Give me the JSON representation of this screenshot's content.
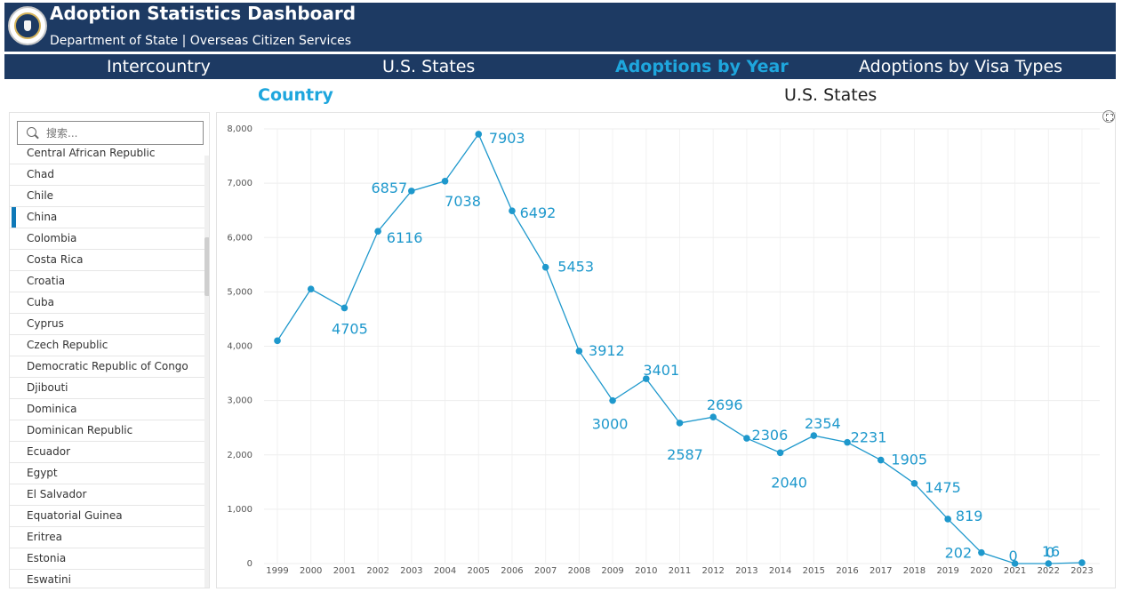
{
  "header": {
    "title": "Adoption Statistics Dashboard",
    "subtitle": "Department of State | Overseas Citizen Services"
  },
  "nav": [
    {
      "label": "Intercountry"
    },
    {
      "label": "U.S. States"
    },
    {
      "label": "Adoptions by Year"
    },
    {
      "label": "Adoptions by Visa Types"
    }
  ],
  "subtabs": [
    {
      "label": "Country"
    },
    {
      "label": "U.S. States"
    }
  ],
  "search": {
    "placeholder": "搜索..."
  },
  "countries": [
    "Central African Republic",
    "Chad",
    "Chile",
    "China",
    "Colombia",
    "Costa Rica",
    "Croatia",
    "Cuba",
    "Cyprus",
    "Czech Republic",
    "Democratic Republic of Congo",
    "Djibouti",
    "Dominica",
    "Dominican Republic",
    "Ecuador",
    "Egypt",
    "El Salvador",
    "Equatorial Guinea",
    "Eritrea",
    "Estonia",
    "Eswatini"
  ],
  "selected_country": "China",
  "colors": {
    "header_bg": "#1d3a63",
    "accent": "#1ea6dd",
    "line": "#1e98cc",
    "selected_bar": "#0f79b8"
  },
  "icons": {
    "seal": "department-of-state-seal",
    "search": "search-icon",
    "expand": "expand-icon"
  },
  "chart_data": {
    "type": "line",
    "x": [
      "1999",
      "2000",
      "2001",
      "2002",
      "2003",
      "2004",
      "2005",
      "2006",
      "2007",
      "2008",
      "2009",
      "2010",
      "2011",
      "2012",
      "2013",
      "2014",
      "2015",
      "2016",
      "2017",
      "2018",
      "2019",
      "2020",
      "2021",
      "2022",
      "2023"
    ],
    "values": [
      4101,
      5053,
      4705,
      6116,
      6857,
      7038,
      7903,
      6492,
      5453,
      3912,
      3000,
      3401,
      2587,
      2696,
      2306,
      2040,
      2354,
      2231,
      1905,
      1475,
      819,
      202,
      0,
      0,
      16
    ],
    "data_labels": {
      "2001": "4705",
      "2002": "6116",
      "2003": "6857",
      "2004": "7038",
      "2005": "7903",
      "2006": "6492",
      "2007": "5453",
      "2008": "3912",
      "2009": "3000",
      "2010": "3401",
      "2011": "2587",
      "2012": "2696",
      "2013": "2306",
      "2014": "2040",
      "2015": "2354",
      "2016": "2231",
      "2017": "1905",
      "2018": "1475",
      "2019": "819",
      "2020": "202",
      "2021": "0",
      "2022": "0",
      "2023": "16"
    },
    "ylim": [
      0,
      8000
    ],
    "yticks": [
      "0",
      "1,000",
      "2,000",
      "3,000",
      "4,000",
      "5,000",
      "6,000",
      "7,000",
      "8,000"
    ],
    "grid": true,
    "title": "",
    "xlabel": "",
    "ylabel": ""
  }
}
